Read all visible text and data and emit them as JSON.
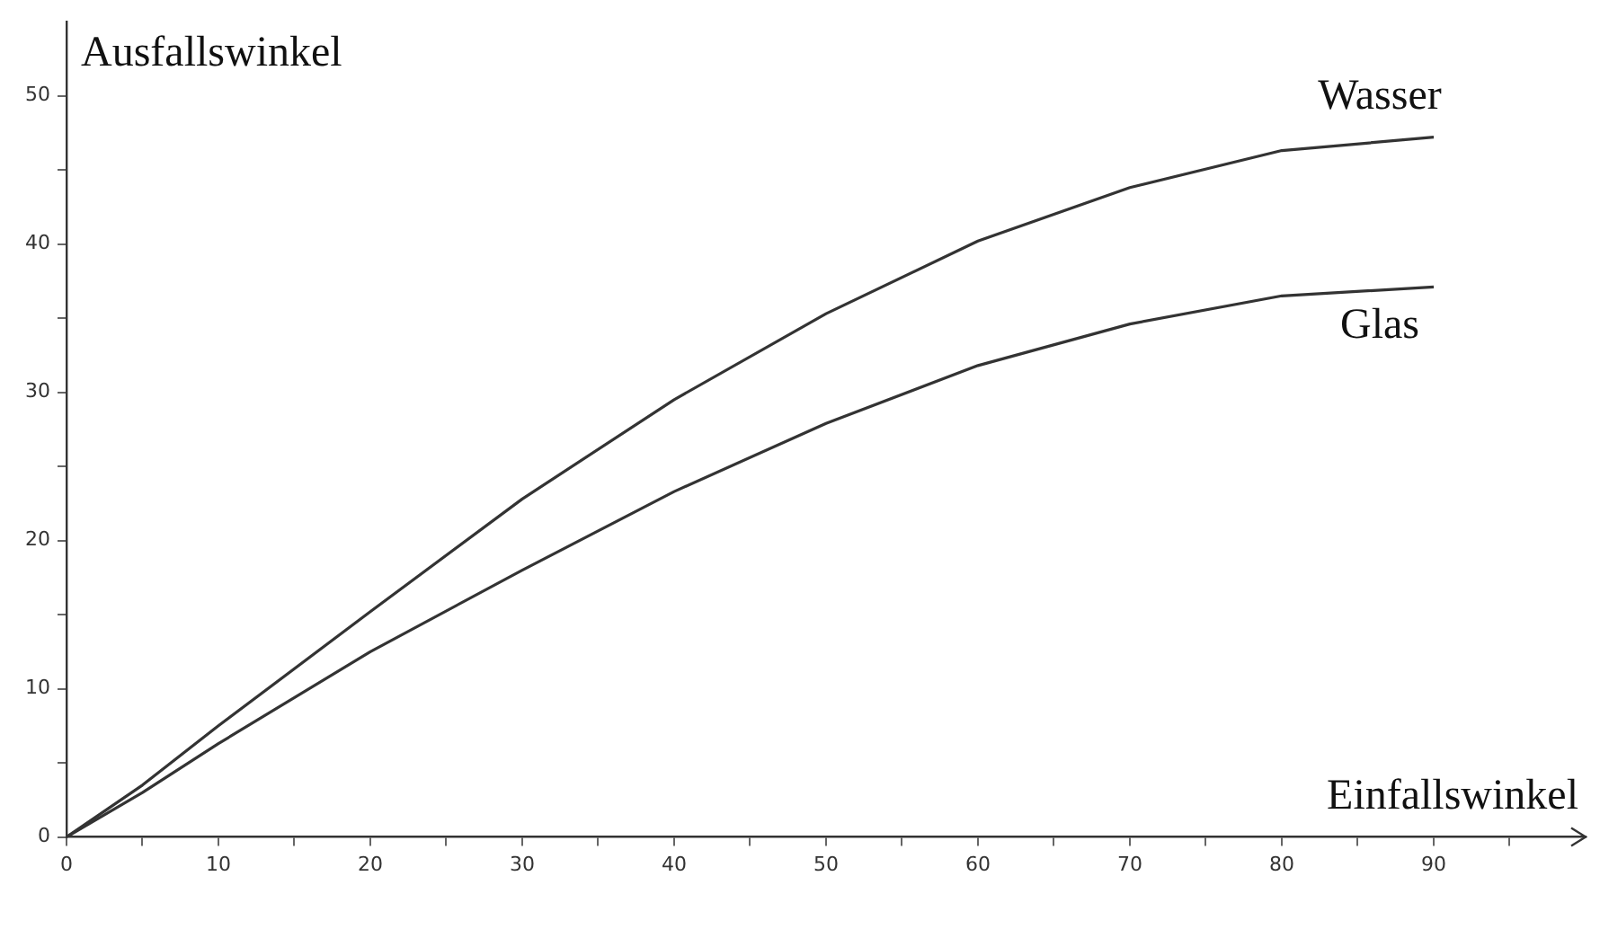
{
  "chart_data": {
    "type": "line",
    "xlabel": "Einfallswinkel",
    "ylabel": "Ausfallswinkel",
    "xlim": [
      0,
      100
    ],
    "ylim": [
      0,
      55
    ],
    "xticks": [
      0,
      {
        "value": 5,
        "label": null
      },
      10,
      {
        "value": 15,
        "label": null
      },
      20,
      {
        "value": 25,
        "label": null
      },
      30,
      {
        "value": 35,
        "label": null
      },
      40,
      {
        "value": 45,
        "label": null
      },
      50,
      {
        "value": 55,
        "label": null
      },
      60,
      {
        "value": 65,
        "label": null
      },
      70,
      {
        "value": 75,
        "label": null
      },
      80,
      {
        "value": 85,
        "label": null
      },
      90,
      {
        "value": 95,
        "label": null
      }
    ],
    "yticks": [
      0,
      {
        "value": 5,
        "label": null
      },
      10,
      {
        "value": 15,
        "label": null
      },
      20,
      {
        "value": 25,
        "label": null
      },
      30,
      {
        "value": 35,
        "label": null
      },
      40,
      {
        "value": 45,
        "label": null
      },
      50
    ],
    "x": [
      0,
      5,
      10,
      20,
      30,
      40,
      50,
      60,
      70,
      80,
      90
    ],
    "series": [
      {
        "name": "Wasser",
        "color": "#333333",
        "values": [
          0,
          3.5,
          7.5,
          15.2,
          22.8,
          29.5,
          35.3,
          40.2,
          43.8,
          46.3,
          47.2
        ]
      },
      {
        "name": "Glas",
        "color": "#333333",
        "values": [
          0,
          3,
          6.3,
          12.5,
          18,
          23.3,
          27.9,
          31.8,
          34.6,
          36.5,
          37.1
        ]
      }
    ],
    "grid": false,
    "legend": false,
    "marker": "none",
    "line_style": "solid"
  }
}
